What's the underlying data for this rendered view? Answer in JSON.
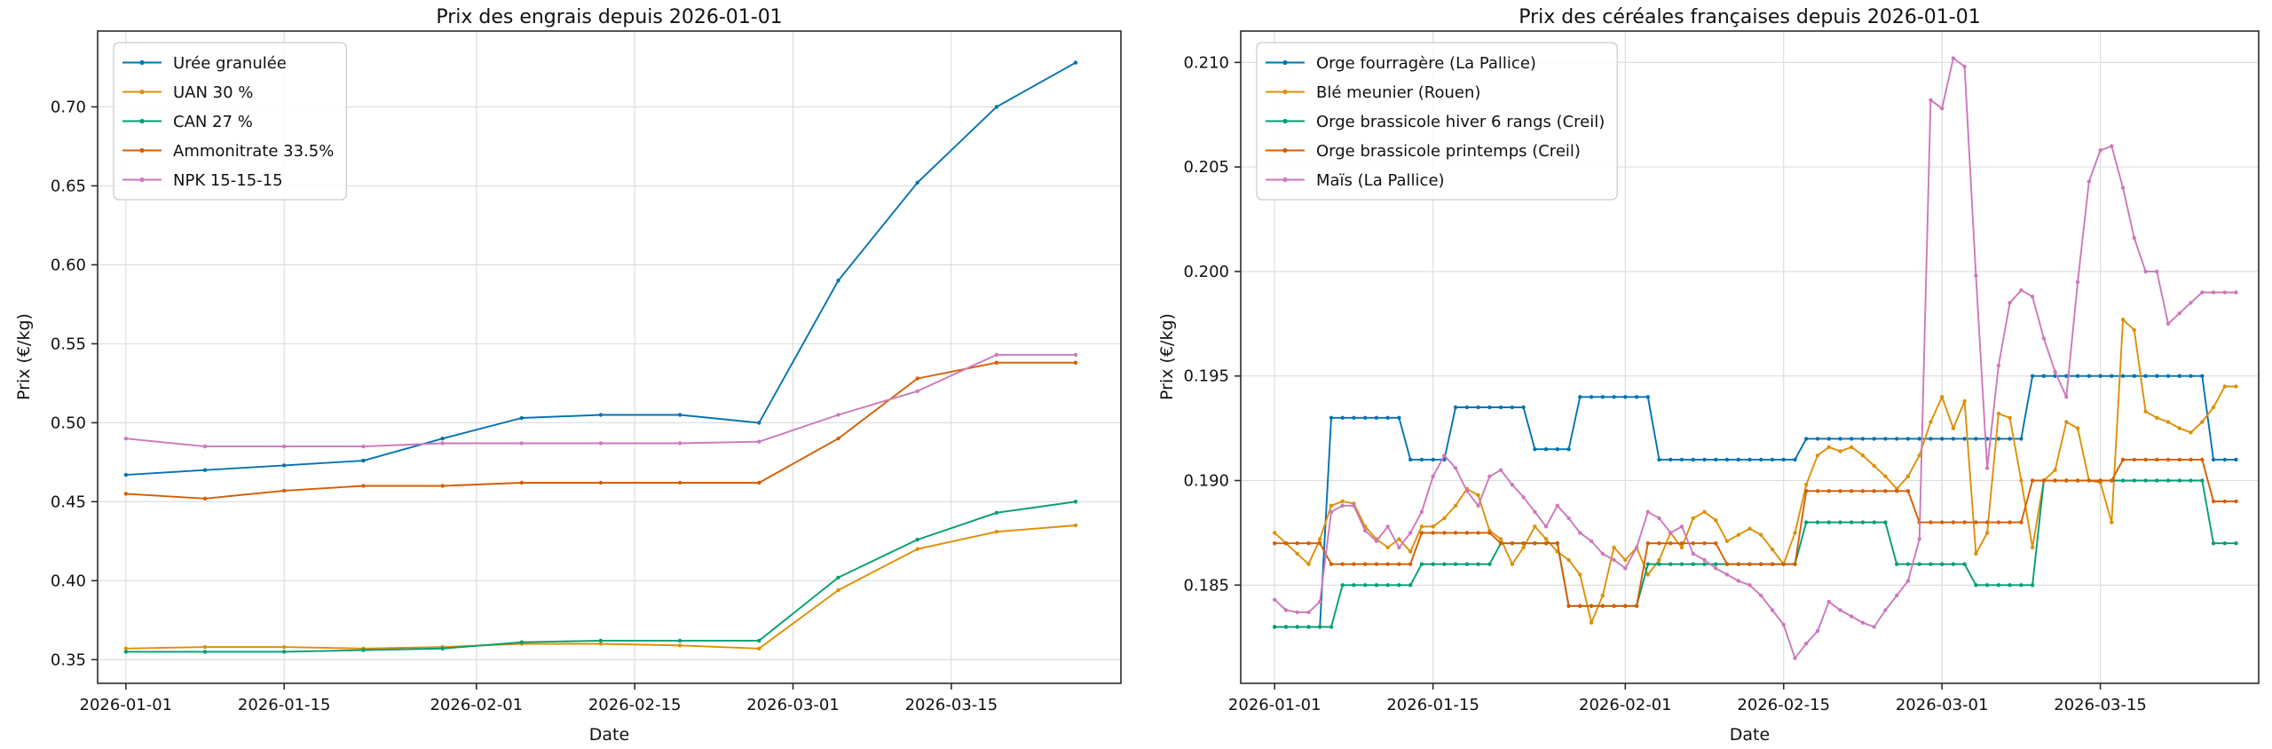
{
  "figure": {
    "background": "#ffffff",
    "text_color": "#111111",
    "grid_color": "#dcdcdc",
    "spine_color": "#2b2b2b"
  },
  "chart_data": [
    {
      "type": "line",
      "title": "Prix des engrais depuis 2026-01-01",
      "xlabel": "Date",
      "ylabel": "Prix (€/kg)",
      "x_unit": "days since 2026-01-01",
      "grid": true,
      "legend_position": "upper left",
      "xlim_days": [
        -2.5,
        88
      ],
      "ylim": [
        0.335,
        0.748
      ],
      "x_tick_days": [
        0,
        14,
        31,
        45,
        59,
        73
      ],
      "x_tick_labels": [
        "2026-01-01",
        "2026-01-15",
        "2026-02-01",
        "2026-02-15",
        "2026-03-01",
        "2026-03-15"
      ],
      "y_tick_values": [
        0.35,
        0.4,
        0.45,
        0.5,
        0.55,
        0.6,
        0.65,
        0.7
      ],
      "y_tick_labels": [
        "0.35",
        "0.40",
        "0.45",
        "0.50",
        "0.55",
        "0.60",
        "0.65",
        "0.70"
      ],
      "series": [
        {
          "name": "Urée granulée",
          "color": "#0173b2",
          "x_days": [
            0,
            7,
            14,
            21,
            28,
            35,
            42,
            49,
            56,
            63,
            70,
            77,
            84
          ],
          "values": [
            0.467,
            0.47,
            0.473,
            0.476,
            0.49,
            0.503,
            0.505,
            0.505,
            0.5,
            0.59,
            0.652,
            0.7,
            0.728
          ]
        },
        {
          "name": "UAN 30 %",
          "color": "#de8f05",
          "x_days": [
            0,
            7,
            14,
            21,
            28,
            35,
            42,
            49,
            56,
            63,
            70,
            77,
            84
          ],
          "values": [
            0.357,
            0.358,
            0.358,
            0.357,
            0.358,
            0.36,
            0.36,
            0.359,
            0.357,
            0.394,
            0.42,
            0.431,
            0.435
          ]
        },
        {
          "name": "CAN 27 %",
          "color": "#029e73",
          "x_days": [
            0,
            7,
            14,
            21,
            28,
            35,
            42,
            49,
            56,
            63,
            70,
            77,
            84
          ],
          "values": [
            0.355,
            0.355,
            0.355,
            0.356,
            0.357,
            0.361,
            0.362,
            0.362,
            0.362,
            0.402,
            0.426,
            0.443,
            0.45
          ]
        },
        {
          "name": "Ammonitrate 33.5%",
          "color": "#d55e00",
          "x_days": [
            0,
            7,
            14,
            21,
            28,
            35,
            42,
            49,
            56,
            63,
            70,
            77,
            84
          ],
          "values": [
            0.455,
            0.452,
            0.457,
            0.46,
            0.46,
            0.462,
            0.462,
            0.462,
            0.462,
            0.49,
            0.528,
            0.538,
            0.538
          ]
        },
        {
          "name": "NPK 15-15-15",
          "color": "#cc78bc",
          "x_days": [
            0,
            7,
            14,
            21,
            28,
            35,
            42,
            49,
            56,
            63,
            70,
            77,
            84
          ],
          "values": [
            0.49,
            0.485,
            0.485,
            0.485,
            0.487,
            0.487,
            0.487,
            0.487,
            0.488,
            0.505,
            0.52,
            0.543,
            0.543
          ]
        }
      ]
    },
    {
      "type": "line",
      "title": "Prix des céréales françaises depuis 2026-01-01",
      "xlabel": "Date",
      "ylabel": "Prix (€/kg)",
      "x_unit": "days since 2026-01-01 (daily quotes)",
      "grid": true,
      "legend_position": "upper left",
      "xlim_days": [
        -3,
        87
      ],
      "ylim": [
        0.1803,
        0.2115
      ],
      "x_tick_days": [
        0,
        14,
        31,
        45,
        59,
        73
      ],
      "x_tick_labels": [
        "2026-01-01",
        "2026-01-15",
        "2026-02-01",
        "2026-02-15",
        "2026-03-01",
        "2026-03-15"
      ],
      "y_tick_values": [
        0.185,
        0.19,
        0.195,
        0.2,
        0.205,
        0.21
      ],
      "y_tick_labels": [
        "0.185",
        "0.190",
        "0.195",
        "0.200",
        "0.205",
        "0.210"
      ],
      "series": [
        {
          "name": "Orge fourragère (La Pallice)",
          "color": "#0173b2",
          "runs": [
            [
              5,
              0.183
            ],
            [
              7,
              0.193
            ],
            [
              4,
              0.191
            ],
            [
              7,
              0.1935
            ],
            [
              4,
              0.1915
            ],
            [
              7,
              0.194
            ],
            [
              13,
              0.191
            ],
            [
              20,
              0.192
            ],
            [
              16,
              0.195
            ],
            [
              3,
              0.191
            ]
          ]
        },
        {
          "name": "Blé meunier (Rouen)",
          "color": "#de8f05",
          "values": [
            0.1875,
            0.187,
            0.1865,
            0.186,
            0.1872,
            0.1888,
            0.189,
            0.1889,
            0.1878,
            0.1872,
            0.1868,
            0.1872,
            0.1866,
            0.1878,
            0.1878,
            0.1882,
            0.1888,
            0.1896,
            0.1893,
            0.1876,
            0.1872,
            0.186,
            0.1868,
            0.1878,
            0.1872,
            0.1866,
            0.1862,
            0.1855,
            0.1832,
            0.1845,
            0.1868,
            0.1862,
            0.1868,
            0.1855,
            0.1862,
            0.1875,
            0.1868,
            0.1882,
            0.1885,
            0.1881,
            0.1871,
            0.1874,
            0.1877,
            0.1874,
            0.1867,
            0.186,
            0.1875,
            0.1898,
            0.1912,
            0.1916,
            0.1914,
            0.1916,
            0.1912,
            0.1907,
            0.1902,
            0.1896,
            0.1902,
            0.1912,
            0.1928,
            0.194,
            0.1925,
            0.1938,
            0.1865,
            0.1875,
            0.1932,
            0.193,
            0.19,
            0.1868,
            0.19,
            0.1905,
            0.1928,
            0.1925,
            0.19,
            0.1899,
            0.188,
            0.1977,
            0.1972,
            0.1933,
            0.193,
            0.1928,
            0.1925,
            0.1923,
            0.1928,
            0.1935,
            0.1945,
            0.1945
          ]
        },
        {
          "name": "Orge brassicole hiver 6 rangs (Creil)",
          "color": "#029e73",
          "runs": [
            [
              6,
              0.183
            ],
            [
              7,
              0.185
            ],
            [
              7,
              0.186
            ],
            [
              6,
              0.187
            ],
            [
              7,
              0.184
            ],
            [
              14,
              0.186
            ],
            [
              8,
              0.188
            ],
            [
              7,
              0.186
            ],
            [
              6,
              0.185
            ],
            [
              15,
              0.19
            ],
            [
              3,
              0.187
            ]
          ]
        },
        {
          "name": "Orge brassicole printemps (Creil)",
          "color": "#d55e00",
          "runs": [
            [
              5,
              0.187
            ],
            [
              8,
              0.186
            ],
            [
              7,
              0.1875
            ],
            [
              6,
              0.187
            ],
            [
              7,
              0.184
            ],
            [
              7,
              0.187
            ],
            [
              7,
              0.186
            ],
            [
              10,
              0.1895
            ],
            [
              10,
              0.188
            ],
            [
              8,
              0.19
            ],
            [
              8,
              0.191
            ],
            [
              3,
              0.189
            ]
          ]
        },
        {
          "name": "Maïs (La Pallice)",
          "color": "#cc78bc",
          "values": [
            0.1843,
            0.1838,
            0.1837,
            0.1837,
            0.1842,
            0.1885,
            0.1888,
            0.1888,
            0.1876,
            0.1871,
            0.1878,
            0.1868,
            0.1875,
            0.1885,
            0.1902,
            0.1912,
            0.1906,
            0.1895,
            0.1888,
            0.1902,
            0.1905,
            0.1898,
            0.1892,
            0.1885,
            0.1878,
            0.1888,
            0.1882,
            0.1875,
            0.1871,
            0.1865,
            0.1862,
            0.1858,
            0.1868,
            0.1885,
            0.1882,
            0.1875,
            0.1878,
            0.1865,
            0.1862,
            0.1858,
            0.1855,
            0.1852,
            0.185,
            0.1845,
            0.1838,
            0.1831,
            0.1815,
            0.1822,
            0.1828,
            0.1842,
            0.1838,
            0.1835,
            0.1832,
            0.183,
            0.1838,
            0.1845,
            0.1852,
            0.1872,
            0.2082,
            0.2078,
            0.2102,
            0.2098,
            0.1998,
            0.1906,
            0.1955,
            0.1985,
            0.1991,
            0.1988,
            0.1968,
            0.1952,
            0.194,
            0.1995,
            0.2043,
            0.2058,
            0.206,
            0.204,
            0.2016,
            0.2,
            0.2,
            0.1975,
            0.198,
            0.1985,
            0.199,
            0.199,
            0.199,
            0.199
          ]
        }
      ]
    }
  ]
}
